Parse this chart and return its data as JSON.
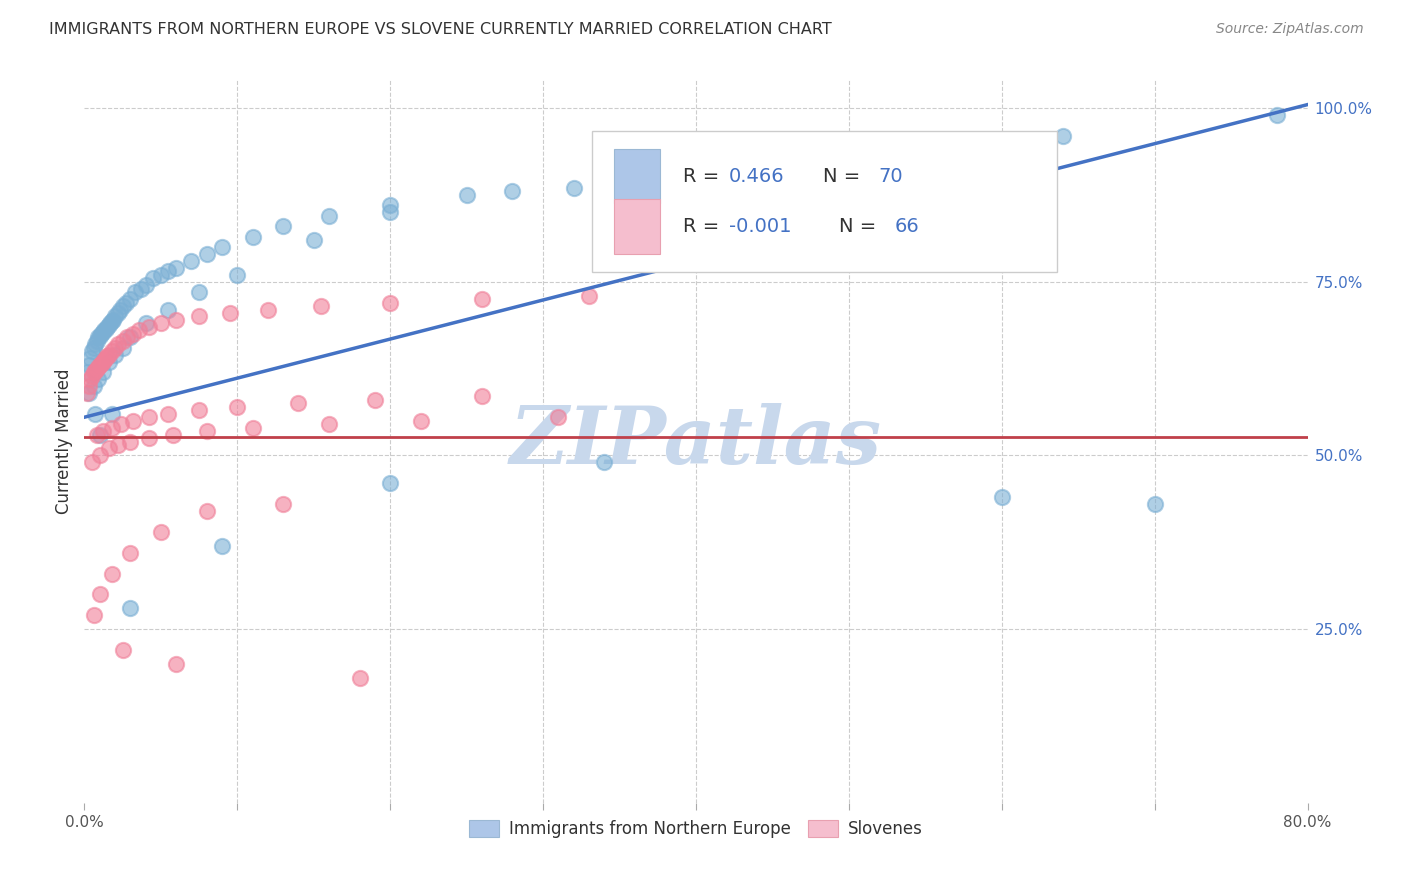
{
  "title": "IMMIGRANTS FROM NORTHERN EUROPE VS SLOVENE CURRENTLY MARRIED CORRELATION CHART",
  "source": "Source: ZipAtlas.com",
  "ylabel": "Currently Married",
  "right_yticks": [
    "100.0%",
    "75.0%",
    "50.0%",
    "25.0%"
  ],
  "right_ytick_vals": [
    1.0,
    0.75,
    0.5,
    0.25
  ],
  "legend1_r": "0.466",
  "legend1_n": "70",
  "legend2_r": "-0.001",
  "legend2_n": "66",
  "legend1_color": "#adc6e8",
  "legend2_color": "#f5bece",
  "scatter1_color": "#7bafd4",
  "scatter2_color": "#f08099",
  "line1_color": "#4472c4",
  "line2_color": "#c0404a",
  "text_dark": "#333333",
  "text_blue": "#4472c4",
  "text_pink": "#c0404a",
  "watermark": "ZIPatlas",
  "watermark_color": "#c8d8ec",
  "background_color": "#ffffff",
  "grid_color": "#cccccc",
  "xlim": [
    0.0,
    0.8
  ],
  "ylim": [
    0.0,
    1.04
  ],
  "blue_line": [
    0.0,
    0.555,
    0.8,
    1.005
  ],
  "pink_line_y": 0.527,
  "blue_x": [
    0.002,
    0.003,
    0.004,
    0.005,
    0.006,
    0.007,
    0.008,
    0.009,
    0.01,
    0.011,
    0.012,
    0.013,
    0.014,
    0.015,
    0.016,
    0.017,
    0.018,
    0.019,
    0.02,
    0.022,
    0.023,
    0.025,
    0.027,
    0.03,
    0.033,
    0.037,
    0.04,
    0.045,
    0.05,
    0.055,
    0.06,
    0.07,
    0.08,
    0.09,
    0.11,
    0.13,
    0.16,
    0.2,
    0.25,
    0.32,
    0.4,
    0.5,
    0.64,
    0.78,
    0.003,
    0.006,
    0.009,
    0.012,
    0.016,
    0.02,
    0.025,
    0.03,
    0.04,
    0.055,
    0.075,
    0.1,
    0.15,
    0.2,
    0.28,
    0.38,
    0.48,
    0.6,
    0.7,
    0.34,
    0.2,
    0.09,
    0.03,
    0.018,
    0.01,
    0.007
  ],
  "blue_y": [
    0.62,
    0.63,
    0.64,
    0.65,
    0.655,
    0.66,
    0.665,
    0.67,
    0.672,
    0.675,
    0.678,
    0.68,
    0.682,
    0.685,
    0.688,
    0.69,
    0.693,
    0.695,
    0.7,
    0.705,
    0.71,
    0.715,
    0.72,
    0.725,
    0.735,
    0.74,
    0.745,
    0.755,
    0.76,
    0.765,
    0.77,
    0.78,
    0.79,
    0.8,
    0.815,
    0.83,
    0.845,
    0.86,
    0.875,
    0.885,
    0.9,
    0.915,
    0.96,
    0.99,
    0.59,
    0.6,
    0.61,
    0.62,
    0.635,
    0.645,
    0.655,
    0.67,
    0.69,
    0.71,
    0.735,
    0.76,
    0.81,
    0.85,
    0.88,
    0.905,
    0.82,
    0.44,
    0.43,
    0.49,
    0.46,
    0.37,
    0.28,
    0.56,
    0.53,
    0.56
  ],
  "pink_x": [
    0.002,
    0.003,
    0.004,
    0.005,
    0.006,
    0.007,
    0.008,
    0.009,
    0.01,
    0.011,
    0.012,
    0.013,
    0.014,
    0.015,
    0.016,
    0.018,
    0.02,
    0.022,
    0.025,
    0.028,
    0.032,
    0.036,
    0.042,
    0.05,
    0.06,
    0.075,
    0.095,
    0.12,
    0.155,
    0.2,
    0.26,
    0.33,
    0.008,
    0.012,
    0.018,
    0.024,
    0.032,
    0.042,
    0.055,
    0.075,
    0.1,
    0.14,
    0.19,
    0.26,
    0.005,
    0.01,
    0.016,
    0.022,
    0.03,
    0.042,
    0.058,
    0.08,
    0.11,
    0.16,
    0.22,
    0.31,
    0.13,
    0.08,
    0.05,
    0.03,
    0.018,
    0.01,
    0.006,
    0.025,
    0.06,
    0.18
  ],
  "pink_y": [
    0.59,
    0.6,
    0.61,
    0.615,
    0.62,
    0.622,
    0.625,
    0.628,
    0.63,
    0.632,
    0.635,
    0.638,
    0.64,
    0.643,
    0.645,
    0.65,
    0.655,
    0.66,
    0.665,
    0.67,
    0.675,
    0.68,
    0.685,
    0.69,
    0.695,
    0.7,
    0.705,
    0.71,
    0.715,
    0.72,
    0.725,
    0.73,
    0.53,
    0.535,
    0.54,
    0.545,
    0.55,
    0.555,
    0.56,
    0.565,
    0.57,
    0.575,
    0.58,
    0.585,
    0.49,
    0.5,
    0.51,
    0.515,
    0.52,
    0.525,
    0.53,
    0.535,
    0.54,
    0.545,
    0.55,
    0.555,
    0.43,
    0.42,
    0.39,
    0.36,
    0.33,
    0.3,
    0.27,
    0.22,
    0.2,
    0.18
  ]
}
